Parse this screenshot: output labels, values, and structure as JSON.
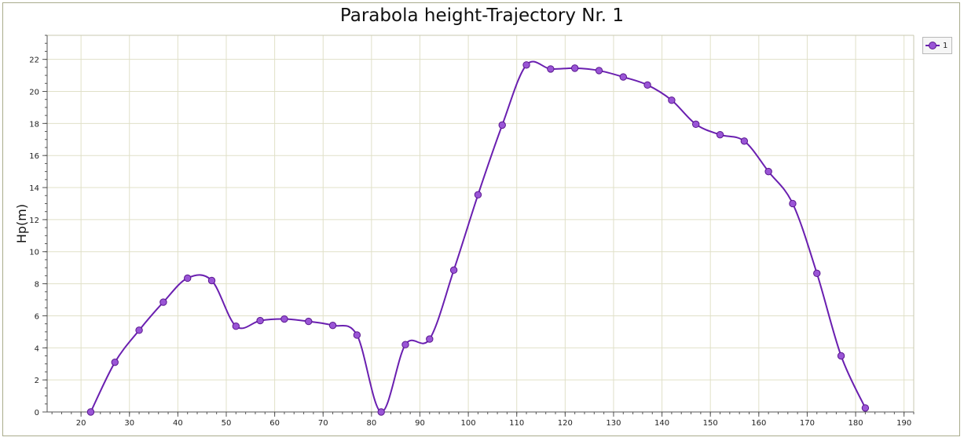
{
  "chart_data": {
    "type": "line",
    "title": "Parabola height-Trajectory Nr. 1",
    "xlabel": "",
    "ylabel": "Hp(m)",
    "xlim": [
      13,
      192
    ],
    "ylim": [
      0,
      23.5
    ],
    "x_ticks": [
      20,
      30,
      40,
      50,
      60,
      70,
      80,
      90,
      100,
      110,
      120,
      130,
      140,
      150,
      160,
      170,
      180,
      190
    ],
    "y_ticks": [
      0,
      2,
      4,
      6,
      8,
      10,
      12,
      14,
      16,
      18,
      20,
      22
    ],
    "grid": true,
    "smooth": true,
    "legend_position": "top-right",
    "series": [
      {
        "name": "1",
        "color": "#6a1fb0",
        "marker_color": "#9a55d6",
        "x": [
          22,
          27,
          32,
          37,
          42,
          47,
          52,
          57,
          62,
          67,
          72,
          77,
          82,
          87,
          92,
          97,
          102,
          107,
          112,
          117,
          122,
          127,
          132,
          137,
          142,
          147,
          152,
          157,
          162,
          167,
          172,
          177,
          182
        ],
        "y": [
          0.0,
          3.1,
          5.1,
          6.85,
          8.35,
          8.2,
          5.35,
          5.7,
          5.8,
          5.65,
          5.4,
          4.8,
          0.0,
          4.2,
          4.55,
          8.85,
          13.55,
          17.9,
          21.65,
          21.4,
          21.45,
          21.3,
          20.9,
          20.4,
          19.45,
          17.95,
          17.3,
          16.9,
          15.0,
          13.0,
          8.65,
          3.5,
          0.25
        ]
      }
    ]
  }
}
